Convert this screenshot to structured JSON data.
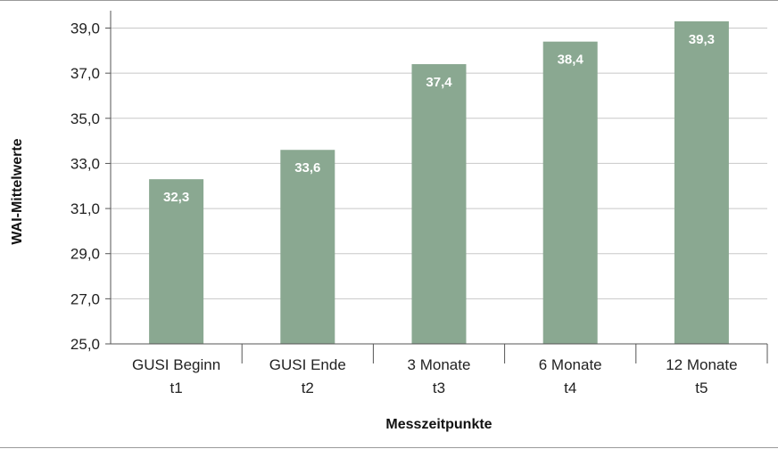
{
  "chart_data": {
    "type": "bar",
    "categories": [
      {
        "line1": "GUSI Beginn",
        "line2": "t1"
      },
      {
        "line1": "GUSI Ende",
        "line2": "t2"
      },
      {
        "line1": "3 Monate",
        "line2": "t3"
      },
      {
        "line1": "6 Monate",
        "line2": "t4"
      },
      {
        "line1": "12 Monate",
        "line2": "t5"
      }
    ],
    "values": [
      32.3,
      33.6,
      37.4,
      38.4,
      39.3
    ],
    "value_labels": [
      "32,3",
      "33,6",
      "37,4",
      "38,4",
      "39,3"
    ],
    "ylim": [
      25,
      40
    ],
    "yticks": [
      25,
      27,
      29,
      31,
      33,
      35,
      37,
      39
    ],
    "ytick_labels": [
      "25,0",
      "27,0",
      "29,0",
      "31,0",
      "33,0",
      "35,0",
      "37,0",
      "39,0"
    ],
    "xlabel": "Messzeitpunkte",
    "ylabel": "WAI-Mittelwerte",
    "grid": true,
    "legend": "none",
    "colors": {
      "bar": "#8aa891",
      "grid": "#c8c8c8",
      "axis": "#555555",
      "text": "#222222",
      "bar_label": "#ffffff"
    }
  }
}
